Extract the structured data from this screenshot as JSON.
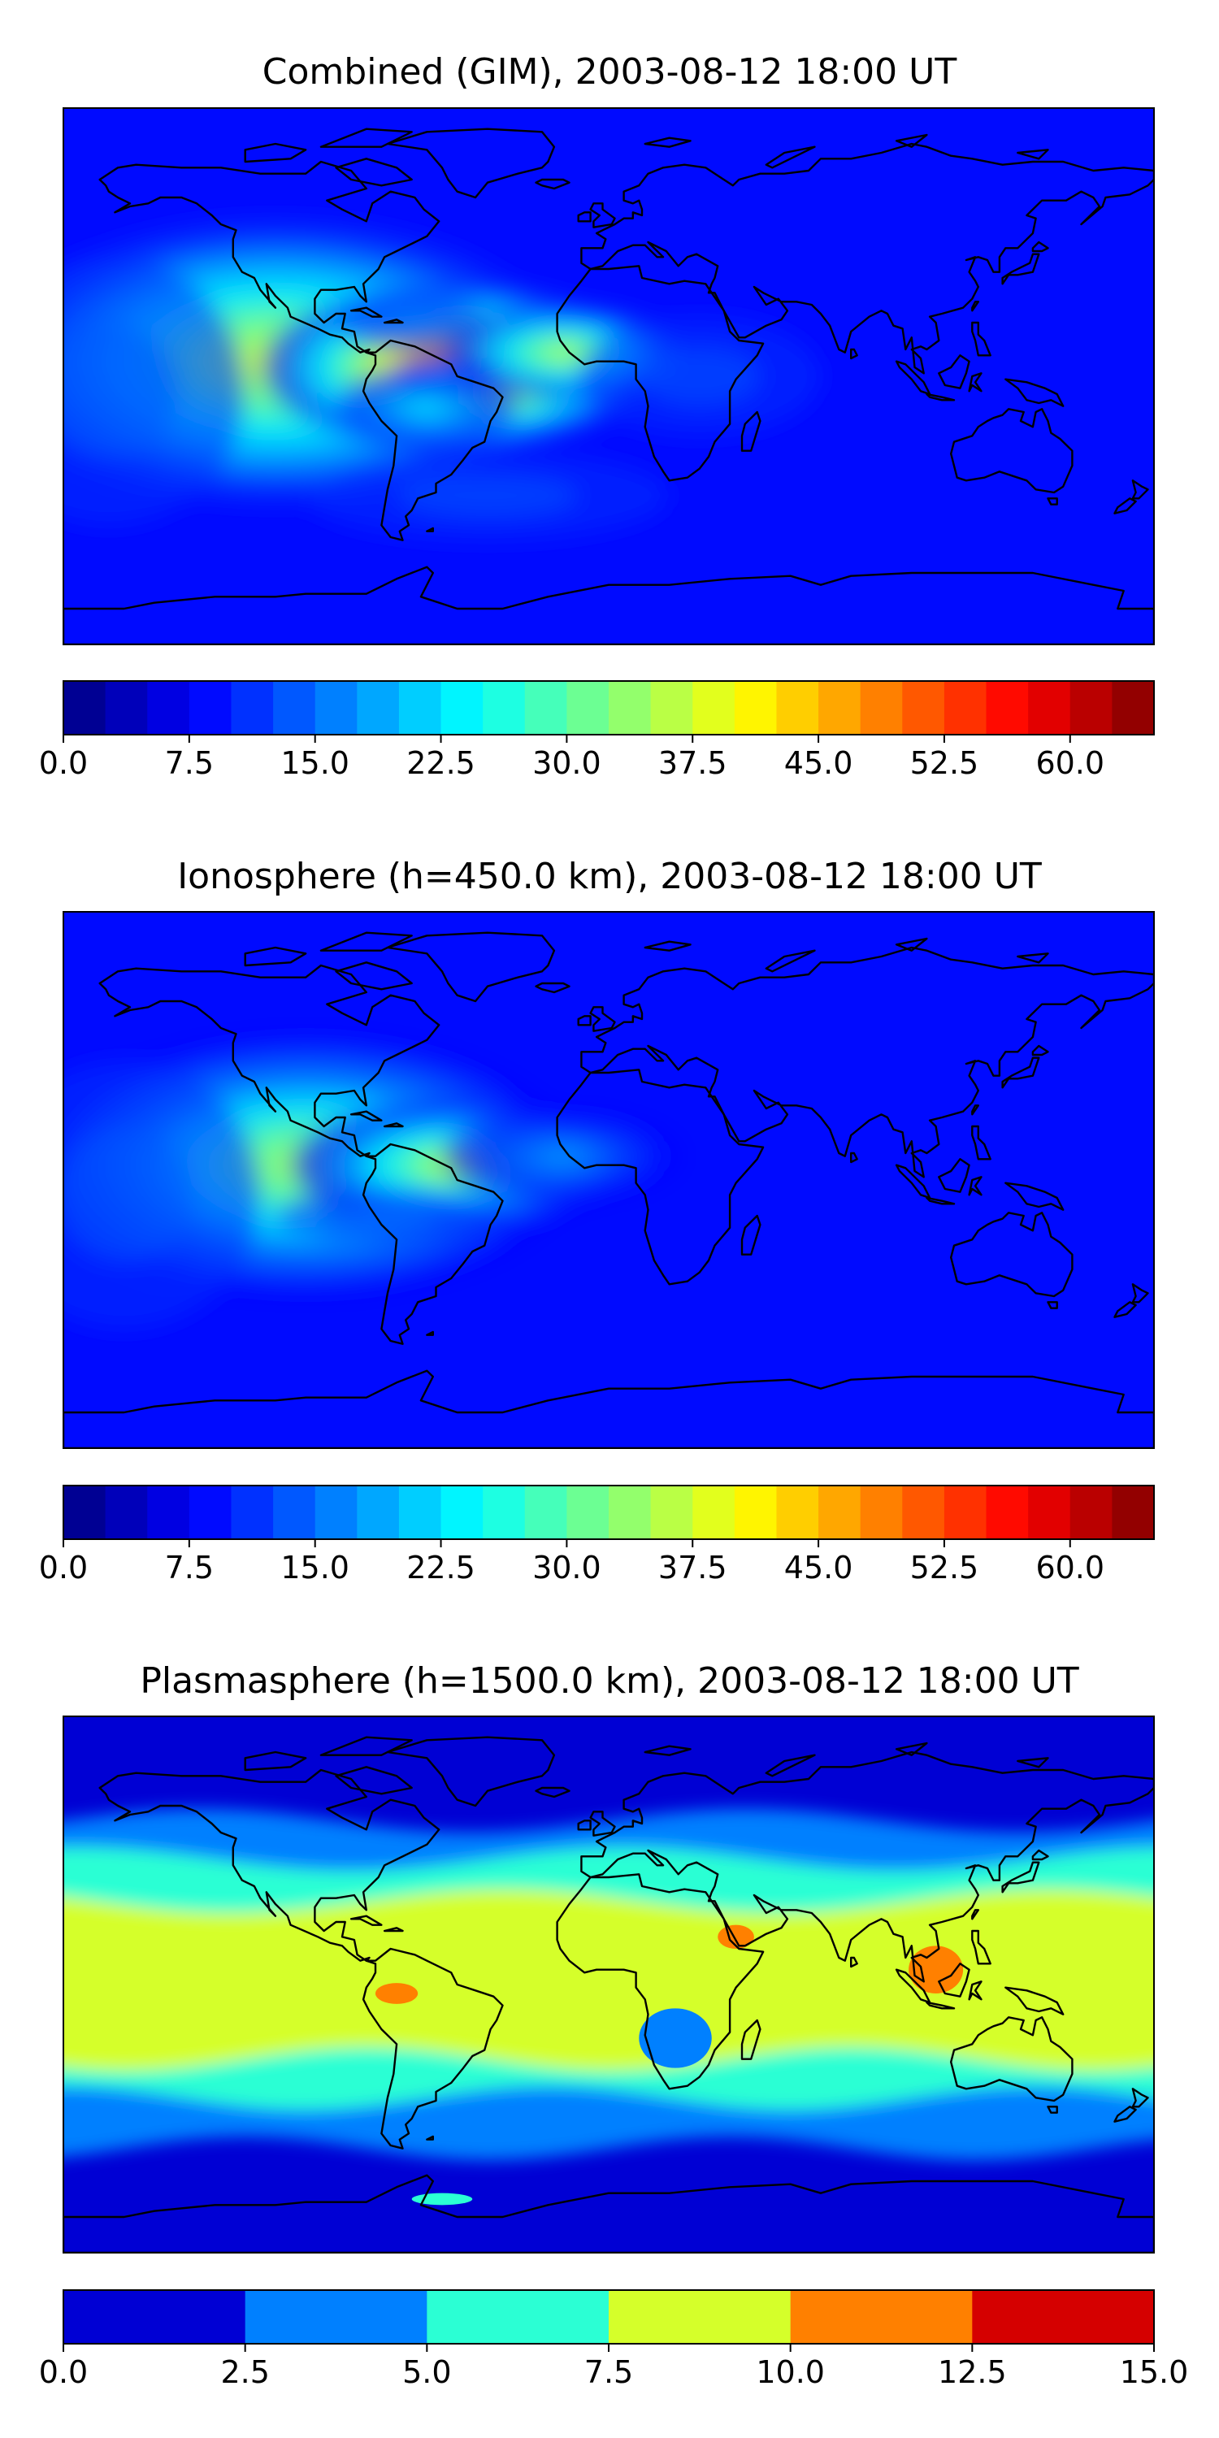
{
  "panels": [
    {
      "id": "combined",
      "title": "Combined (GIM), 2003-08-12 18:00 UT",
      "colorbar": {
        "min": 0.0,
        "max": 65.0,
        "step": 2.5,
        "cmap": "jet",
        "ticks": [
          "0.0",
          "7.5",
          "15.0",
          "22.5",
          "30.0",
          "37.5",
          "45.0",
          "52.5",
          "60.0"
        ],
        "tick_values": [
          0,
          7.5,
          15,
          22.5,
          30,
          37.5,
          45,
          52.5,
          60
        ]
      },
      "blobs": [
        {
          "lon": -110,
          "lat": 5,
          "rx": 95,
          "ry": 48,
          "v": 24
        },
        {
          "lon": -50,
          "lat": 3,
          "rx": 65,
          "ry": 28,
          "v": 38
        },
        {
          "lon": -60,
          "lat": -10,
          "rx": 30,
          "ry": 14,
          "v": 14
        },
        {
          "lon": -15,
          "lat": 8,
          "rx": 40,
          "ry": 16,
          "v": 22
        },
        {
          "lon": -65,
          "lat": 18,
          "rx": 25,
          "ry": 10,
          "v": 8
        },
        {
          "lon": -55,
          "lat": 0,
          "rx": 18,
          "ry": 7,
          "v": 8
        },
        {
          "lon": -165,
          "lat": -5,
          "rx": 45,
          "ry": 45,
          "v": 6
        },
        {
          "lon": -40,
          "lat": -40,
          "rx": 60,
          "ry": 15,
          "v": 6
        },
        {
          "lon": 30,
          "lat": 0,
          "rx": 40,
          "ry": 20,
          "v": 6
        }
      ],
      "base": 8.5
    },
    {
      "id": "ionosphere",
      "title": "Ionosphere  (h=450.0 km), 2003-08-12 18:00 UT",
      "colorbar": {
        "min": 0.0,
        "max": 65.0,
        "step": 2.5,
        "cmap": "jet",
        "ticks": [
          "0.0",
          "7.5",
          "15.0",
          "22.5",
          "30.0",
          "37.5",
          "45.0",
          "52.5",
          "60.0"
        ],
        "tick_values": [
          0,
          7.5,
          15,
          22.5,
          30,
          37.5,
          45,
          52.5,
          60
        ]
      },
      "blobs": [
        {
          "lon": -100,
          "lat": 5,
          "rx": 90,
          "ry": 45,
          "v": 22
        },
        {
          "lon": -50,
          "lat": 5,
          "rx": 55,
          "ry": 22,
          "v": 24
        },
        {
          "lon": -70,
          "lat": -12,
          "rx": 40,
          "ry": 9,
          "v": 8
        },
        {
          "lon": -15,
          "lat": 8,
          "rx": 40,
          "ry": 16,
          "v": 12
        },
        {
          "lon": -160,
          "lat": -5,
          "rx": 45,
          "ry": 45,
          "v": 5
        }
      ],
      "base": 7.5
    },
    {
      "id": "plasmasphere",
      "title": "Plasmasphere (h=1500.0 km), 2003-08-12 18:00 UT",
      "colorbar": {
        "min": 0.0,
        "max": 15.0,
        "step": 2.5,
        "cmap": "jet",
        "ticks": [
          "0.0",
          "2.5",
          "5.0",
          "7.5",
          "10.0",
          "12.5",
          "15.0"
        ],
        "tick_values": [
          0,
          2.5,
          5,
          7.5,
          10,
          12.5,
          15
        ]
      },
      "bands": [
        {
          "lat_min": -55,
          "lat_max": 55,
          "v": 3.5
        },
        {
          "lat_min": -38,
          "lat_max": 42,
          "v": 6.0
        },
        {
          "lat_min": -25,
          "lat_max": 28,
          "v": 8.5
        }
      ],
      "spots": [
        {
          "lon": -70,
          "lat": -3,
          "rx": 7,
          "ry": 3.5,
          "v": 11
        },
        {
          "lon": 42,
          "lat": 16,
          "rx": 6,
          "ry": 4,
          "v": 11
        },
        {
          "lon": 108,
          "lat": 5,
          "rx": 9,
          "ry": 8,
          "v": 11
        },
        {
          "lon": 22,
          "lat": -18,
          "rx": 12,
          "ry": 10,
          "v": 3.5
        },
        {
          "lon": -55,
          "lat": -72,
          "rx": 10,
          "ry": 2,
          "v": 6.0
        }
      ]
    }
  ],
  "map": {
    "lon_range": [
      -180,
      180
    ],
    "lat_range": [
      -90,
      90
    ],
    "projection": "PlateCarree",
    "coastline_color": "#000000"
  }
}
